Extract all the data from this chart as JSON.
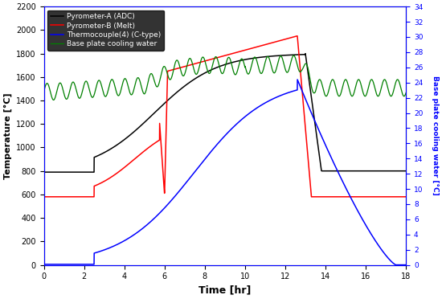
{
  "title": "",
  "xlabel": "Time [hr]",
  "ylabel_left": "Temperature [°C]",
  "ylabel_right": "Base plate cooling water [°C]",
  "xlim": [
    0,
    18
  ],
  "ylim_left": [
    0,
    2200
  ],
  "ylim_right": [
    0,
    34
  ],
  "xticks": [
    0,
    2,
    4,
    6,
    8,
    10,
    12,
    14,
    16,
    18
  ],
  "yticks_left": [
    0,
    200,
    400,
    600,
    800,
    1000,
    1200,
    1400,
    1600,
    1800,
    2000,
    2200
  ],
  "yticks_right": [
    0,
    2,
    4,
    6,
    8,
    10,
    12,
    14,
    16,
    18,
    20,
    22,
    24,
    26,
    28,
    30,
    32,
    34
  ],
  "legend": [
    {
      "label": "Pyrometer-A (ADC)",
      "color": "black"
    },
    {
      "label": "Pyrometer-B (Melt)",
      "color": "red"
    },
    {
      "label": "Thermocouple(4) (C-type)",
      "color": "blue"
    },
    {
      "label": "Base plate cooling water",
      "color": "green"
    }
  ],
  "figsize": [
    5.5,
    3.72
  ],
  "dpi": 100
}
